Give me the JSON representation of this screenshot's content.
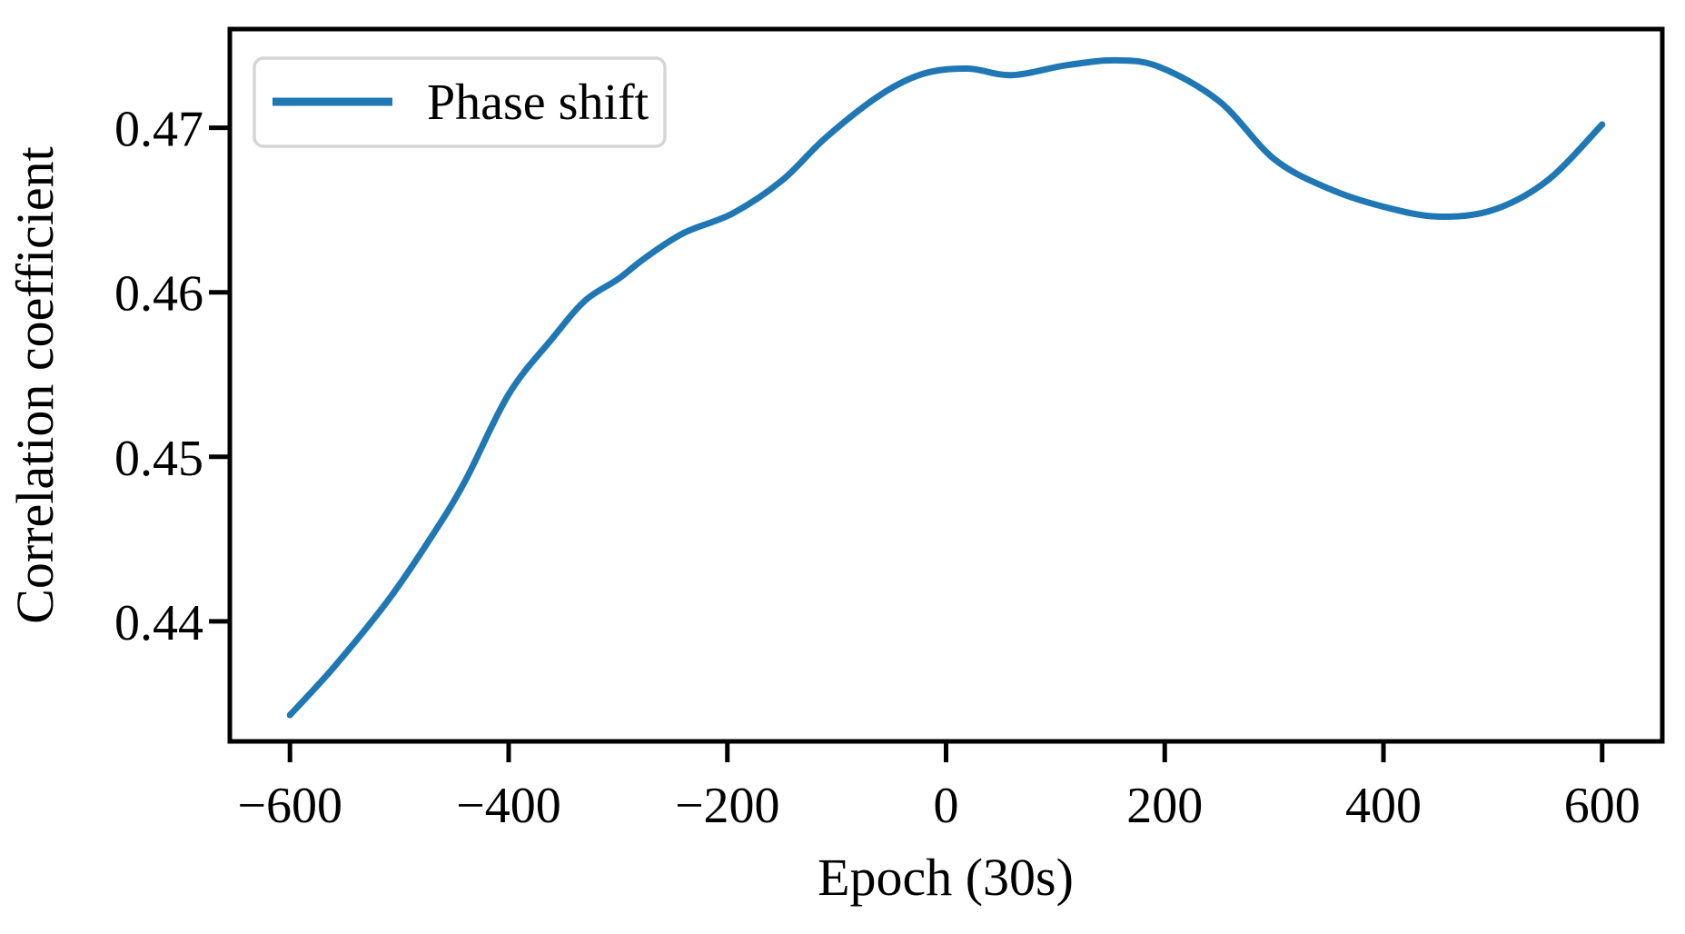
{
  "chart_data": {
    "type": "line",
    "title": "",
    "xlabel": "Epoch (30s)",
    "ylabel": "Correlation coefficient",
    "xlim": [
      -655,
      655
    ],
    "ylim": [
      0.4327,
      0.476
    ],
    "grid": false,
    "x_ticks": {
      "values": [
        -600,
        -400,
        -200,
        0,
        200,
        400,
        600
      ],
      "labels": [
        "−600",
        "−400",
        "−200",
        "0",
        "200",
        "400",
        "600"
      ]
    },
    "y_ticks": {
      "values": [
        0.44,
        0.45,
        0.46,
        0.47
      ],
      "labels": [
        "0.44",
        "0.45",
        "0.46",
        "0.47"
      ]
    },
    "legend": {
      "position": "upper left",
      "entries": [
        {
          "label": "Phase shift",
          "color": "#1f77b4"
        }
      ]
    },
    "series": [
      {
        "name": "Phase shift",
        "color": "#1f77b4",
        "x": [
          -600,
          -560,
          -510,
          -470,
          -440,
          -400,
          -360,
          -330,
          -300,
          -275,
          -240,
          -195,
          -150,
          -110,
          -60,
          -20,
          20,
          60,
          110,
          155,
          195,
          250,
          300,
          350,
          400,
          450,
          500,
          550,
          600
        ],
        "y": [
          0.4343,
          0.4372,
          0.4413,
          0.4452,
          0.4485,
          0.4538,
          0.4572,
          0.4595,
          0.4608,
          0.4621,
          0.4636,
          0.4648,
          0.4668,
          0.4694,
          0.472,
          0.4733,
          0.4736,
          0.4732,
          0.4738,
          0.4741,
          0.4737,
          0.4716,
          0.4681,
          0.4663,
          0.4652,
          0.4646,
          0.465,
          0.4668,
          0.4702
        ]
      }
    ]
  }
}
